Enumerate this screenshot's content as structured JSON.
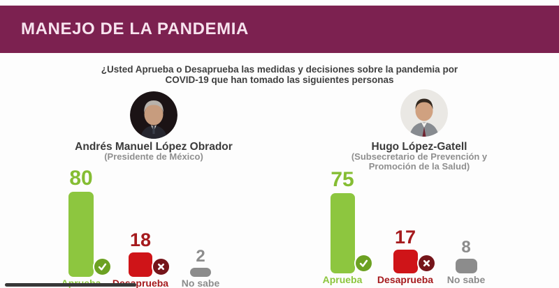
{
  "header": {
    "title": "MANEJO DE LA PANDEMIA",
    "bg_color": "#7c2150",
    "text_color": "#f7e3ee"
  },
  "question": {
    "line1": "¿Usted Aprueba o Desaprueba las medidas y decisiones sobre la pandemia por",
    "line2": "COVID-19 que han tomado las siguientes personas"
  },
  "people": [
    {
      "name": "Andrés Manuel López Obrador",
      "role_lines": [
        "(Presidente de México)"
      ]
    },
    {
      "name": "Hugo López-Gatell",
      "role_lines": [
        "(Subsecretario de Prevención y",
        "Promoción de la Salud)"
      ]
    }
  ],
  "chart_data": {
    "type": "bar",
    "title": "MANEJO DE LA PANDEMIA",
    "subtitle": "¿Usted Aprueba o Desaprueba las medidas y decisiones sobre la pandemia por COVID-19 que han tomado las siguientes personas",
    "categories": [
      "Aprueba",
      "Desaprueba",
      "No sabe"
    ],
    "series": [
      {
        "name": "Andrés Manuel López Obrador (Presidente de México)",
        "values": [
          80,
          18,
          2
        ]
      },
      {
        "name": "Hugo López-Gatell (Subsecretario de Prevención y Promoción de la Salud)",
        "values": [
          75,
          17,
          8
        ]
      }
    ],
    "ylim": [
      0,
      100
    ],
    "grid": false,
    "legend": "none",
    "value_labels": true,
    "bar_colors": [
      "#8dc63f",
      "#cf1418",
      "#8c8c8c"
    ],
    "value_text_colors": [
      "#85bd33",
      "#a51a1d",
      "#8c8c8c"
    ],
    "category_text_colors": [
      "#8cc63e",
      "#a51a1d",
      "#8c8c8c"
    ],
    "badges": [
      "check",
      "cross",
      "none"
    ],
    "badge_colors": {
      "check": "#6ca122",
      "cross": "#75151a"
    }
  },
  "video_progress": {
    "color": "#383838"
  }
}
